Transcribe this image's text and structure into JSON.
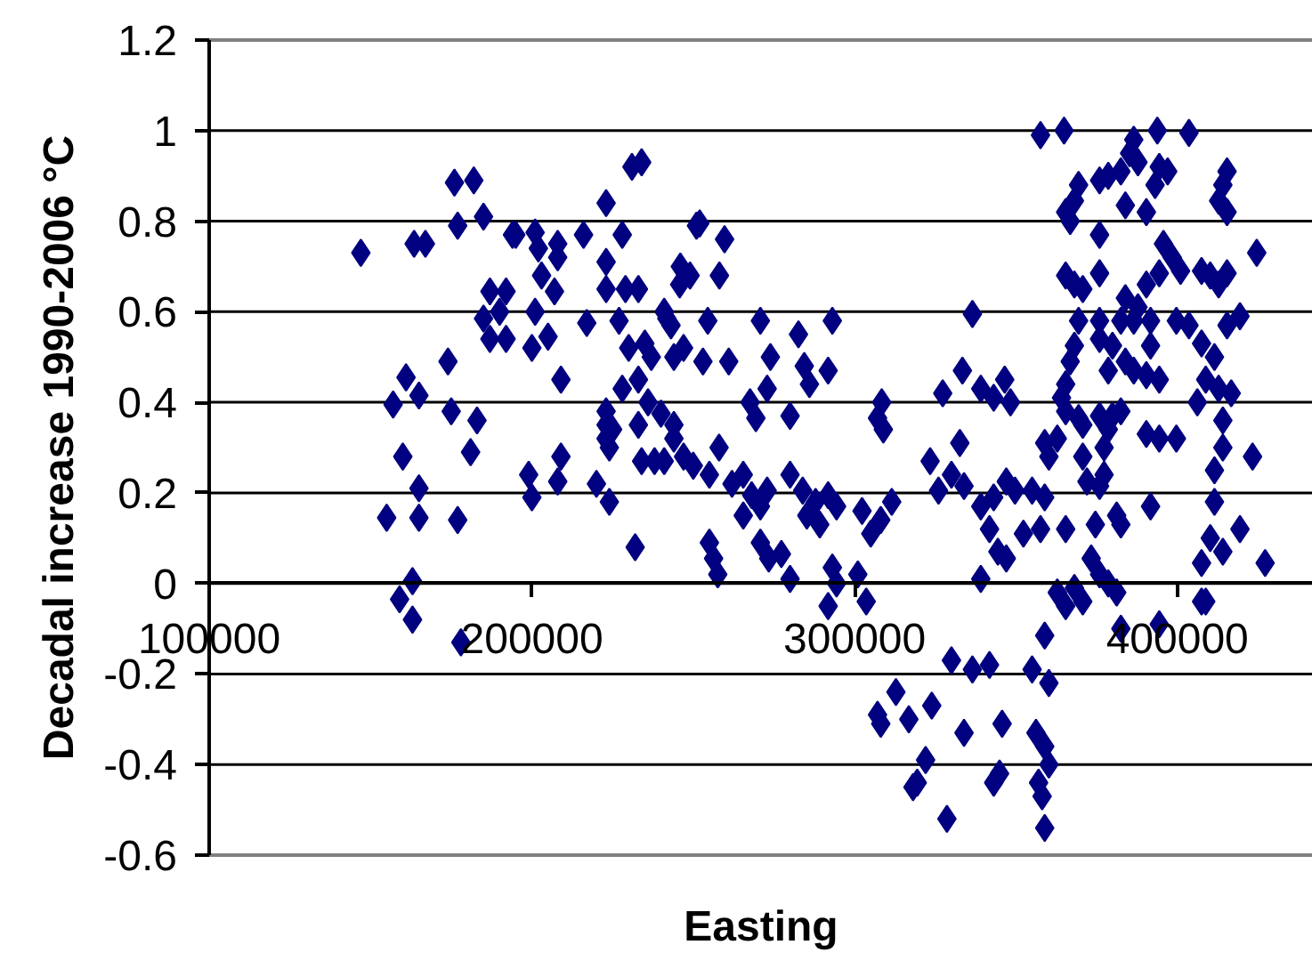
{
  "chart_data": {
    "type": "scatter",
    "xlabel": "Easting",
    "ylabel": "Decadal increase 1990-2006 °C",
    "color": "#000080",
    "marker": "diamond",
    "grid": "y",
    "xlim": [
      100000,
      442000
    ],
    "ylim": [
      -0.6,
      1.2
    ],
    "xticks": [
      100000,
      200000,
      300000,
      400000
    ],
    "yticks": [
      -0.6,
      -0.4,
      -0.2,
      0,
      0.2,
      0.4,
      0.6,
      0.8,
      1,
      1.2
    ],
    "x": [
      147000,
      163500,
      167000,
      176000,
      182000,
      177000,
      185000,
      194000,
      187000,
      192000,
      190000,
      185000,
      187000,
      192000,
      174000,
      161000,
      157000,
      165000,
      175000,
      183000,
      160000,
      181000,
      165000,
      155000,
      165000,
      177000,
      163000,
      159000,
      163000,
      178000,
      195000,
      201000,
      202000,
      208000,
      208000,
      216000,
      203000,
      207000,
      201000,
      200000,
      205000,
      217000,
      209000,
      199000,
      209000,
      208000,
      200000,
      220000,
      224000,
      232000,
      228000,
      233000,
      223000,
      225000,
      224000,
      233000,
      234000,
      238000,
      241000,
      236000,
      240000,
      244000,
      231000,
      234000,
      223000,
      228000,
      223000,
      246000,
      249000,
      252000,
      223000,
      229000,
      233000,
      241000,
      227000,
      230000,
      235000,
      237000,
      247000,
      244000,
      253000,
      261000,
      223000,
      223000,
      244000,
      250000,
      255000,
      262000,
      247000,
      258000,
      251000,
      259700,
      245800,
      258100,
      241800,
      243100,
      254500,
      270800,
      293100,
      336500,
      282600,
      273900,
      284400,
      286000,
      291800,
      272900,
      308400,
      307100,
      308900,
      327300,
      333400,
      339100,
      343100,
      346500,
      348300,
      280000,
      267600,
      269400,
      280000,
      283900,
      287900,
      291800,
      294400,
      302300,
      285200,
      289200,
      265500,
      268100,
      270800,
      272900,
      265500,
      255000,
      256300,
      257600,
      270800,
      273400,
      277300,
      280000,
      293100,
      294400,
      291800,
      301000,
      303600,
      311500,
      308100,
      305000,
      323400,
      326000,
      332600,
      330000,
      333900,
      339100,
      343100,
      347000,
      349700,
      355000,
      358900,
      341800,
      344400,
      352300,
      357600,
      365400,
      374600,
      381200,
      382500,
      339100,
      347000,
      362800,
      365400,
      368100,
      370700,
      373300,
      375900,
      378600,
      381200,
      382500,
      394400,
      407500,
      358900,
      360200,
      355000,
      330000,
      336500,
      341800,
      312800,
      307100,
      308100,
      316800,
      323900,
      333900,
      345700,
      322000,
      318100,
      319400,
      328600,
      343100,
      344900,
      356200,
      358900,
      360200,
      357000,
      358100,
      358900,
      357600,
      364900,
      393800,
      403600,
      386500,
      385200,
      387800,
      382500,
      378600,
      375900,
      369400,
      368100,
      365400,
      366800,
      394400,
      397000,
      393100,
      383900,
      390400,
      375900,
      395700,
      398400,
      401000,
      394400,
      390400,
      383900,
      387800,
      391700,
      399700,
      403600,
      365400,
      368100,
      370700,
      375900,
      369400,
      375900,
      382500,
      386500,
      415400,
      414100,
      412800,
      415400,
      424600,
      407500,
      410200,
      412800,
      415400,
      419400,
      415400,
      407500,
      411500,
      408800,
      412800,
      416700,
      406200,
      414100,
      414100,
      423300,
      411500,
      411500,
      410200,
      414100,
      419400,
      407500,
      427200,
      408800,
      375900,
      379900,
      383900,
      386500,
      390400,
      394400,
      391700,
      378600,
      368100,
      366800,
      365400,
      364100,
      365400,
      369400,
      370700,
      375900,
      379900,
      382500,
      378600,
      377300,
      370700,
      377300,
      375900,
      372000,
      390400,
      394400,
      399700,
      391700,
      362800,
      358900,
      360200
    ],
    "values": [
      0.73,
      0.75,
      0.75,
      0.885,
      0.89,
      0.79,
      0.81,
      0.77,
      0.645,
      0.645,
      0.6,
      0.585,
      0.54,
      0.54,
      0.49,
      0.455,
      0.395,
      0.415,
      0.38,
      0.36,
      0.28,
      0.29,
      0.21,
      0.145,
      0.145,
      0.14,
      0.005,
      -0.035,
      -0.08,
      -0.13,
      0.77,
      0.775,
      0.74,
      0.75,
      0.72,
      0.77,
      0.68,
      0.645,
      0.6,
      0.52,
      0.545,
      0.575,
      0.45,
      0.24,
      0.28,
      0.225,
      0.19,
      0.22,
      0.18,
      0.08,
      0.43,
      0.45,
      0.38,
      0.34,
      0.3,
      0.35,
      0.27,
      0.27,
      0.27,
      0.4,
      0.375,
      0.35,
      0.92,
      0.93,
      0.84,
      0.77,
      0.71,
      0.7,
      0.68,
      0.795,
      0.65,
      0.65,
      0.65,
      0.6,
      0.58,
      0.52,
      0.53,
      0.5,
      0.52,
      0.5,
      0.49,
      0.49,
      0.35,
      0.32,
      0.32,
      0.26,
      0.24,
      0.22,
      0.28,
      0.3,
      0.79,
      0.76,
      0.66,
      0.68,
      0.585,
      0.57,
      0.58,
      0.58,
      0.58,
      0.595,
      0.55,
      0.5,
      0.48,
      0.44,
      0.47,
      0.43,
      0.4,
      0.365,
      0.34,
      0.42,
      0.47,
      0.43,
      0.41,
      0.45,
      0.4,
      0.37,
      0.4,
      0.365,
      0.24,
      0.205,
      0.18,
      0.195,
      0.17,
      0.16,
      0.15,
      0.13,
      0.24,
      0.195,
      0.17,
      0.205,
      0.15,
      0.09,
      0.055,
      0.02,
      0.09,
      0.055,
      0.065,
      0.01,
      0.035,
      0.0,
      -0.05,
      0.02,
      -0.04,
      0.18,
      0.14,
      0.11,
      0.27,
      0.205,
      0.31,
      0.24,
      0.215,
      0.17,
      0.19,
      0.225,
      0.205,
      0.205,
      0.19,
      0.12,
      0.07,
      0.11,
      0.12,
      0.12,
      0.13,
      0.15,
      0.13,
      0.01,
      0.055,
      -0.02,
      -0.05,
      -0.01,
      -0.04,
      0.055,
      0.02,
      0.0,
      -0.02,
      -0.1,
      -0.09,
      -0.04,
      -0.115,
      -0.22,
      -0.19,
      -0.17,
      -0.19,
      -0.18,
      -0.24,
      -0.29,
      -0.31,
      -0.3,
      -0.27,
      -0.33,
      -0.31,
      -0.39,
      -0.45,
      -0.44,
      -0.52,
      -0.44,
      -0.42,
      -0.33,
      -0.36,
      -0.4,
      -0.44,
      -0.47,
      -0.54,
      0.99,
      1.0,
      1.0,
      0.995,
      0.98,
      0.95,
      0.93,
      0.91,
      0.9,
      0.89,
      0.88,
      0.845,
      0.82,
      0.8,
      0.92,
      0.91,
      0.88,
      0.835,
      0.82,
      0.77,
      0.75,
      0.72,
      0.69,
      0.685,
      0.66,
      0.63,
      0.61,
      0.58,
      0.58,
      0.57,
      0.68,
      0.66,
      0.65,
      0.685,
      0.58,
      0.58,
      0.58,
      0.58,
      0.91,
      0.88,
      0.845,
      0.82,
      0.73,
      0.69,
      0.68,
      0.66,
      0.685,
      0.59,
      0.57,
      0.53,
      0.5,
      0.45,
      0.43,
      0.42,
      0.4,
      0.36,
      0.3,
      0.28,
      0.25,
      0.18,
      0.1,
      0.07,
      0.12,
      0.045,
      0.045,
      -0.04,
      0.54,
      0.525,
      0.49,
      0.47,
      0.46,
      0.45,
      0.525,
      0.47,
      0.525,
      0.49,
      0.44,
      0.41,
      0.38,
      0.365,
      0.35,
      0.37,
      0.37,
      0.38,
      0.34,
      0.3,
      0.28,
      0.24,
      0.215,
      0.225,
      0.33,
      0.32,
      0.32,
      0.17,
      0.32,
      0.31,
      0.28
    ]
  }
}
